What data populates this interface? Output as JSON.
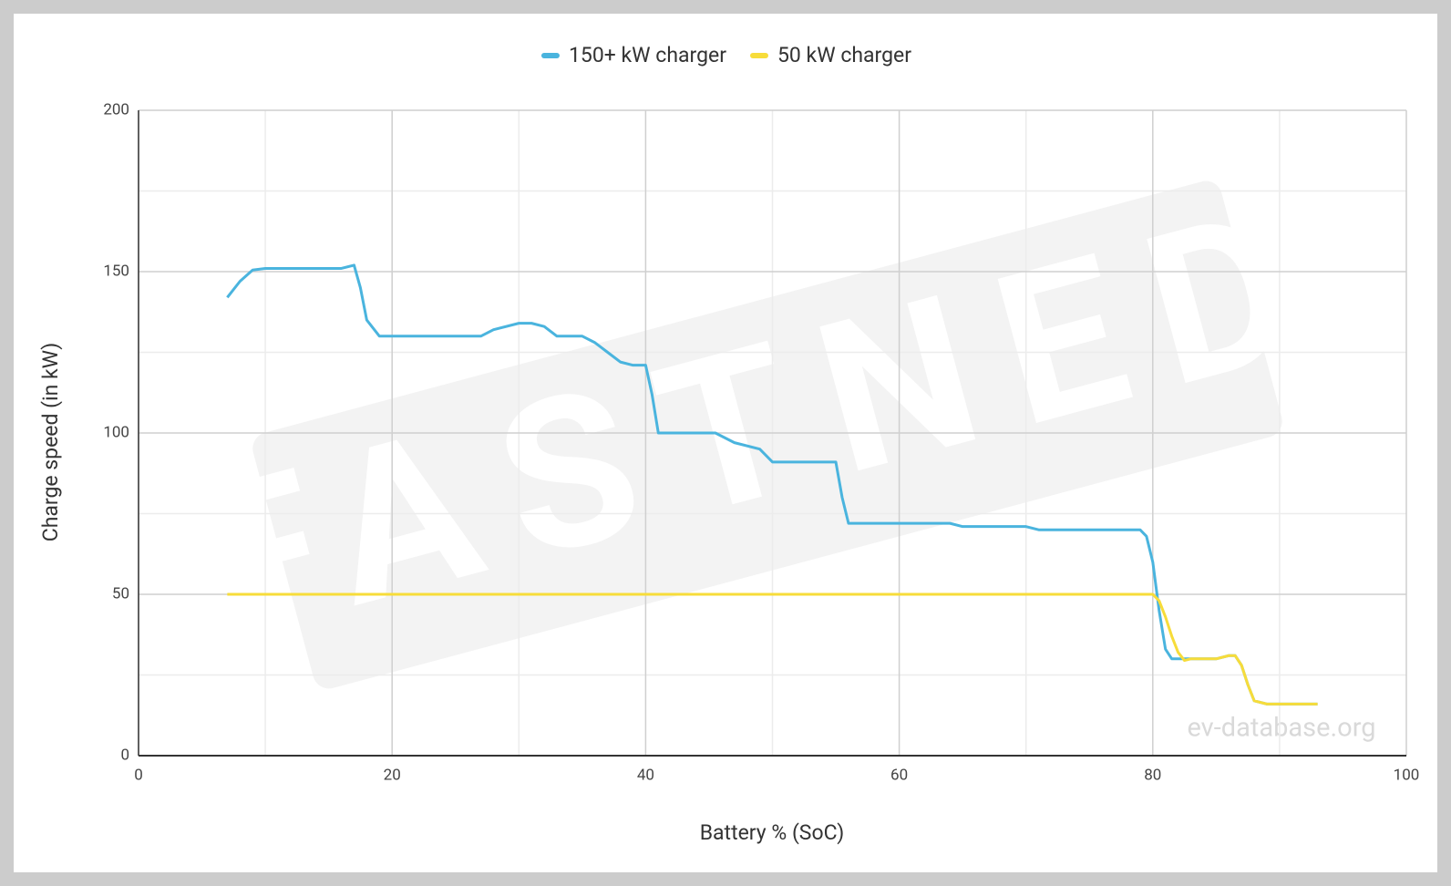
{
  "chart_data": {
    "type": "line",
    "x_label": "Battery % (SoC)",
    "y_label": "Charge speed (in kW)",
    "watermarks": [
      "FASTNED",
      "ev-database.org"
    ],
    "x": [
      7,
      8,
      9,
      10,
      12,
      14,
      16,
      17,
      17.5,
      18,
      19,
      20,
      22,
      24,
      26,
      27,
      28,
      30,
      31,
      32,
      33,
      35,
      36,
      37,
      38,
      39,
      40,
      40.5,
      41,
      42,
      44,
      45.5,
      47,
      49,
      50,
      52,
      54,
      55,
      55.5,
      56,
      57,
      60,
      64,
      65,
      70,
      71,
      75,
      79,
      79.5,
      80,
      80.5,
      81,
      81.5,
      82,
      82.5,
      83,
      85,
      86,
      86.5,
      87,
      87.5,
      88,
      89,
      91,
      93
    ],
    "series": [
      {
        "name": "150+ kW charger",
        "color": "#4ab4de",
        "values": [
          142,
          147,
          150.5,
          151,
          151,
          151,
          151,
          152,
          145,
          135,
          130,
          130,
          130,
          130,
          130,
          130,
          132,
          134,
          134,
          133,
          130,
          130,
          128,
          125,
          122,
          121,
          121,
          112,
          100,
          100,
          100,
          100,
          97,
          95,
          91,
          91,
          91,
          91,
          80,
          72,
          72,
          72,
          72,
          71,
          71,
          70,
          70,
          70,
          68,
          60,
          45,
          33,
          30,
          30,
          30,
          30,
          30,
          31,
          31,
          28,
          22,
          17,
          16,
          16,
          16
        ]
      },
      {
        "name": "50 kW charger",
        "color": "#f7dc3a",
        "values": [
          50,
          50,
          50,
          50,
          50,
          50,
          50,
          50,
          50,
          50,
          50,
          50,
          50,
          50,
          50,
          50,
          50,
          50,
          50,
          50,
          50,
          50,
          50,
          50,
          50,
          50,
          50,
          50,
          50,
          50,
          50,
          50,
          50,
          50,
          50,
          50,
          50,
          50,
          50,
          50,
          50,
          50,
          50,
          50,
          50,
          50,
          50,
          50,
          50,
          50,
          48,
          43,
          37,
          32,
          29.5,
          30,
          30,
          31,
          31,
          28,
          22,
          17,
          16,
          16,
          16
        ]
      }
    ],
    "xlim": [
      0,
      100
    ],
    "xticks": [
      0,
      20,
      40,
      60,
      80,
      100
    ],
    "ylim": [
      0,
      200
    ],
    "yticks": [
      0,
      50,
      100,
      150,
      200
    ],
    "grid": true,
    "minor_grid": true,
    "legend": "top"
  }
}
